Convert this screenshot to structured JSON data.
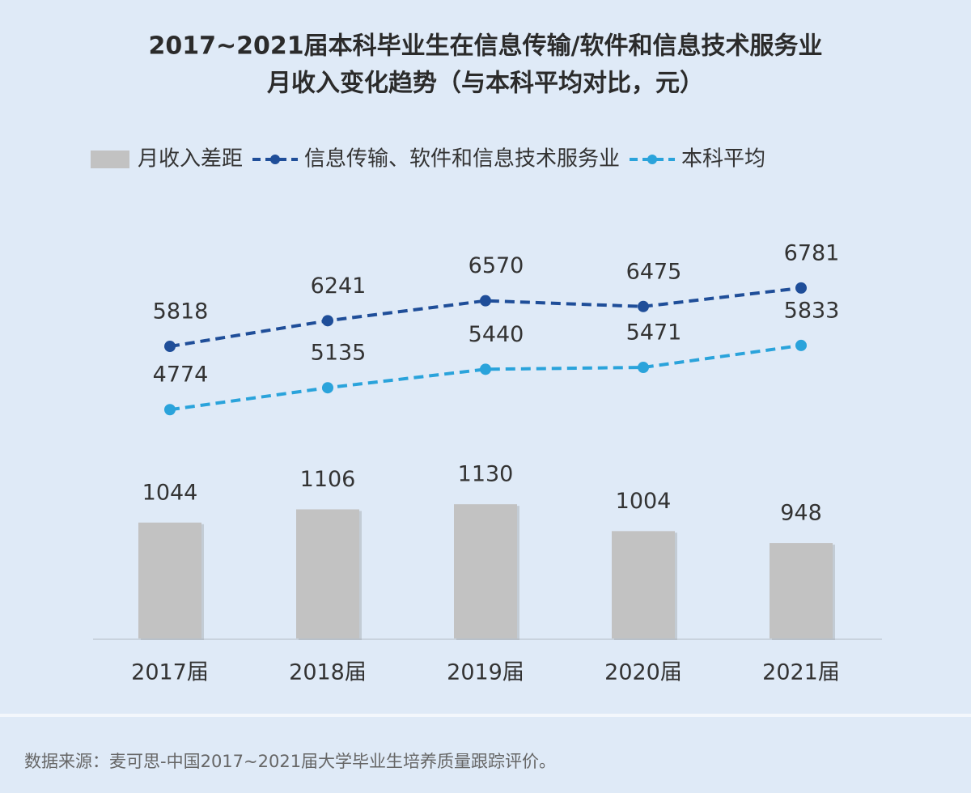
{
  "chart_data": {
    "type": "bar",
    "title": [
      "2017~2021届本科毕业生在信息传输/软件和信息技术服务业",
      "月收入变化趋势（与本科平均对比，元）"
    ],
    "categories": [
      "2017届",
      "2018届",
      "2019届",
      "2020届",
      "2021届"
    ],
    "series": [
      {
        "name": "月收入差距",
        "type": "bar",
        "axis": "y2",
        "color": "#c2c2c2",
        "values": [
          1044,
          1106,
          1130,
          1004,
          948
        ]
      },
      {
        "name": "信息传输、软件和信息技术服务业",
        "type": "line",
        "color": "#1f4e99",
        "values": [
          5818,
          6241,
          6570,
          6475,
          6781
        ]
      },
      {
        "name": "本科平均",
        "type": "line",
        "color": "#2aa3db",
        "values": [
          4774,
          5135,
          5440,
          5471,
          5833
        ]
      }
    ],
    "ylim": [
      1000,
      7500
    ],
    "y2lim": [
      500,
      2350
    ],
    "source": "数据来源：麦可思-中国2017~2021届大学毕业生培养质量跟踪评价。"
  }
}
